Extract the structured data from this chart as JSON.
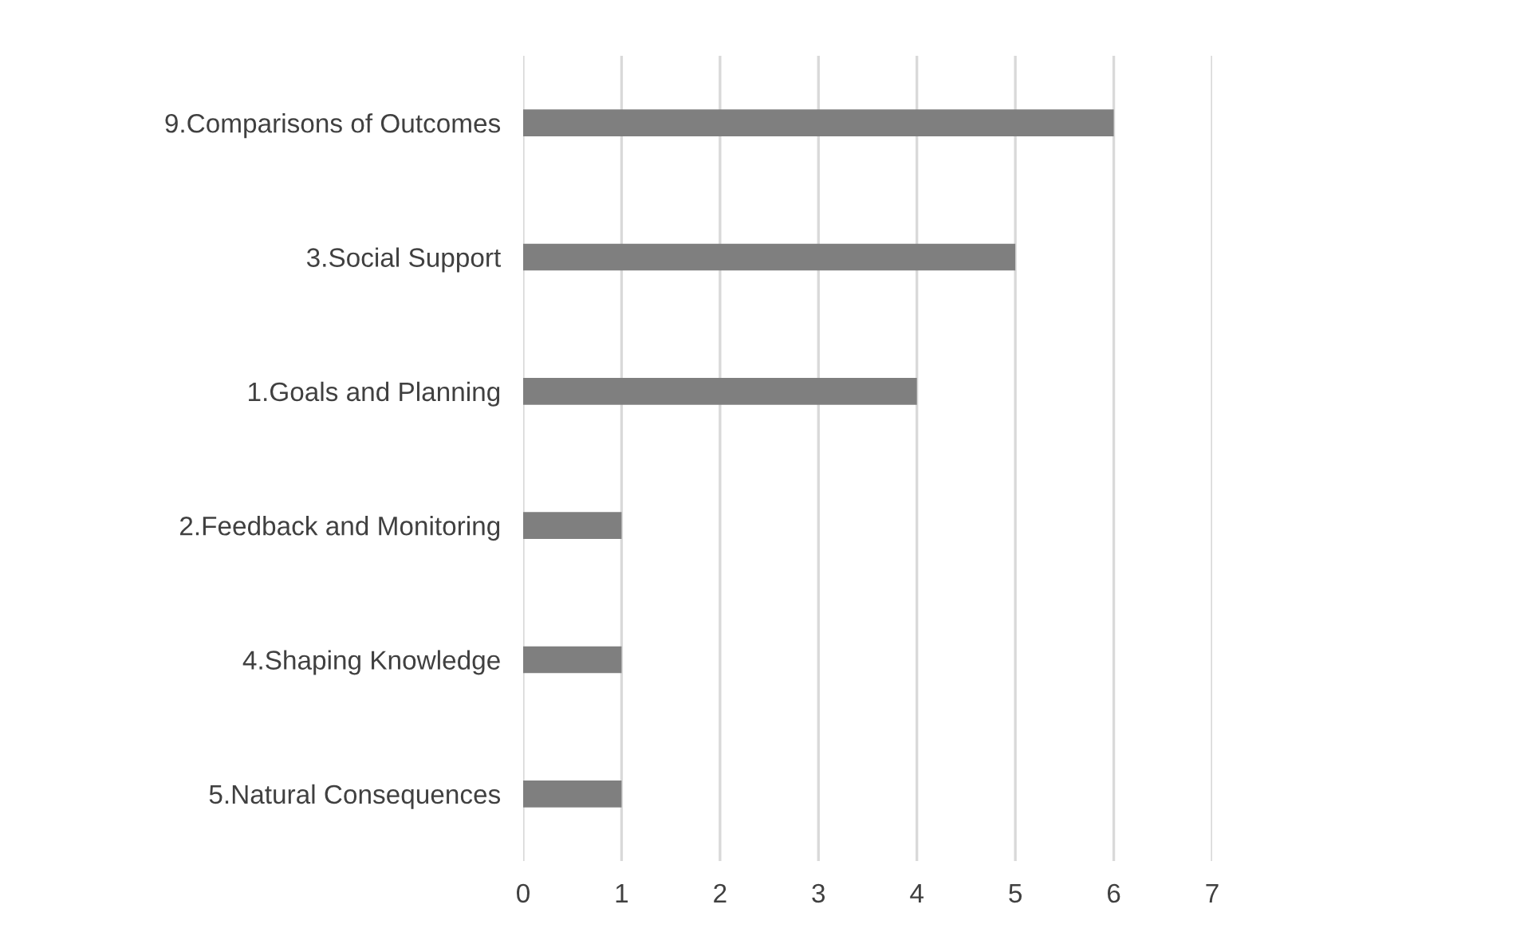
{
  "chart_data": {
    "type": "bar",
    "orientation": "horizontal",
    "categories": [
      "9.Comparisons of Outcomes",
      "3.Social Support",
      "1.Goals and Planning",
      "2.Feedback and Monitoring",
      "4.Shaping Knowledge",
      "5.Natural Consequences"
    ],
    "values": [
      6,
      5,
      4,
      1,
      1,
      1
    ],
    "color": "#7f7f7f",
    "xlim": [
      0,
      7
    ],
    "xticks": [
      0,
      1,
      2,
      3,
      4,
      5,
      6,
      7
    ],
    "grid": "x"
  }
}
